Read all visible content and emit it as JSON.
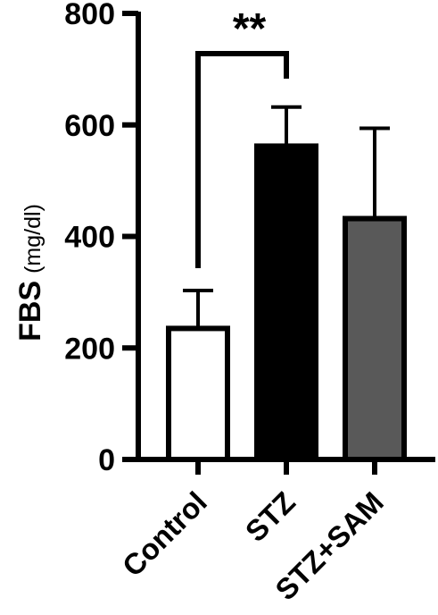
{
  "chart_data": {
    "type": "bar",
    "ylabel": "FBS",
    "ylabel_unit": "(mg/dl)",
    "xlabel": "",
    "title": "",
    "ylim": [
      0,
      800
    ],
    "yticks": [
      "0",
      "200",
      "400",
      "600",
      "800"
    ],
    "categories": [
      "Control",
      "STZ",
      "STZ+SAM"
    ],
    "values": [
      235,
      562,
      432
    ],
    "errors": [
      68,
      70,
      162
    ],
    "bar_fills": [
      "#ffffff",
      "#000000",
      "#595959"
    ],
    "significance": {
      "from": 0,
      "to": 1,
      "label": "**"
    },
    "grid": false,
    "legend": "none"
  }
}
